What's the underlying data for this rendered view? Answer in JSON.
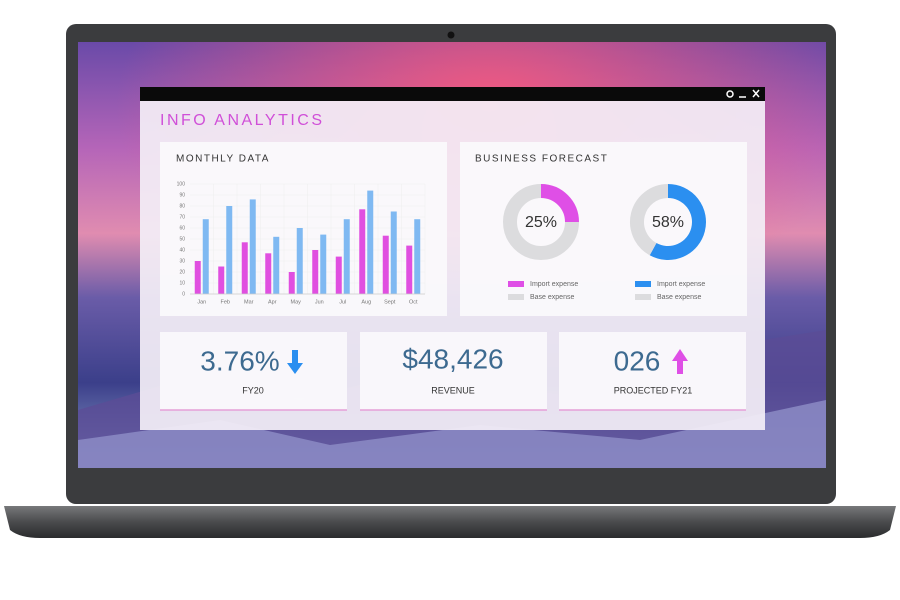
{
  "app_title": "INFO ANALYTICS",
  "chart_data": [
    {
      "type": "bar",
      "title": "MONTHLY DATA",
      "categories": [
        "Jan",
        "Feb",
        "Mar",
        "Apr",
        "May",
        "Jun",
        "Jul",
        "Aug",
        "Sept",
        "Oct"
      ],
      "series": [
        {
          "color": "#e04fe0",
          "values": [
            30,
            25,
            47,
            37,
            20,
            40,
            34,
            77,
            53,
            44
          ]
        },
        {
          "color": "#7fb9f2",
          "values": [
            68,
            80,
            86,
            52,
            60,
            54,
            68,
            94,
            75,
            68
          ]
        }
      ],
      "ylim": [
        0,
        100
      ],
      "yticks": [
        0,
        10,
        20,
        30,
        40,
        50,
        60,
        70,
        80,
        90,
        100
      ],
      "grid": true
    },
    {
      "type": "pie",
      "categories": [
        "Import expense",
        "Base expense"
      ],
      "values": [
        25,
        75
      ],
      "value_labels": [
        "25%",
        null
      ],
      "colors": [
        "#df4fe6",
        "#dcdcde"
      ]
    },
    {
      "type": "pie",
      "categories": [
        "Import expense",
        "Base expense"
      ],
      "values": [
        58,
        42
      ],
      "value_labels": [
        "58%",
        null
      ],
      "colors": [
        "#2b8ff0",
        "#dcdcde"
      ]
    }
  ],
  "forecast_title": "BUSINESS FORECAST",
  "kpis": [
    {
      "value": "3.76%",
      "label": "FY20"
    },
    {
      "value": "$48,426",
      "label": "REVENUE"
    },
    {
      "value": "026",
      "label": "PROJECTED FY21"
    }
  ]
}
